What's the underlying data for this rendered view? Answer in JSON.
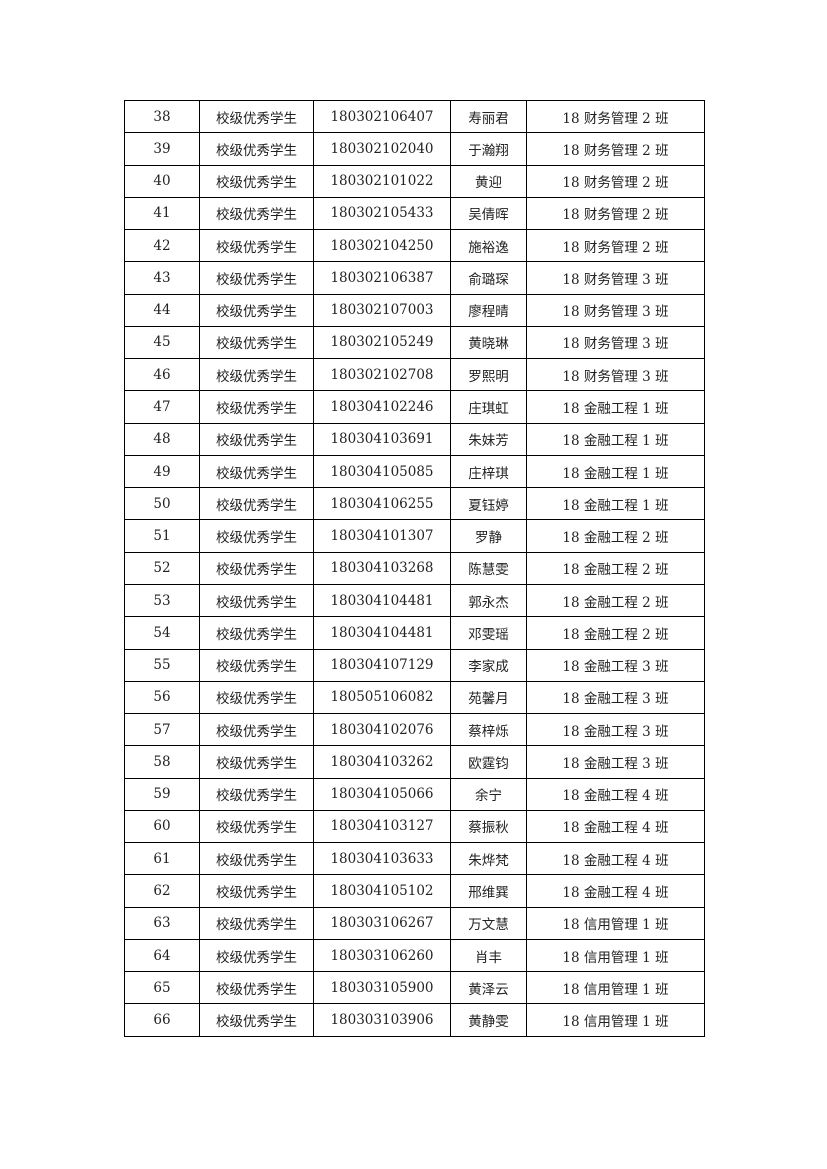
{
  "table": {
    "rows": [
      [
        "38",
        "校级优秀学生",
        "180302106407",
        "寿丽君",
        "18 财务管理 2 班"
      ],
      [
        "39",
        "校级优秀学生",
        "180302102040",
        "于瀚翔",
        "18 财务管理 2 班"
      ],
      [
        "40",
        "校级优秀学生",
        "180302101022",
        "黄迎",
        "18 财务管理 2 班"
      ],
      [
        "41",
        "校级优秀学生",
        "180302105433",
        "吴倩晖",
        "18 财务管理 2 班"
      ],
      [
        "42",
        "校级优秀学生",
        "180302104250",
        "施裕逸",
        "18 财务管理 2 班"
      ],
      [
        "43",
        "校级优秀学生",
        "180302106387",
        "俞璐琛",
        "18 财务管理 3 班"
      ],
      [
        "44",
        "校级优秀学生",
        "180302107003",
        "廖程晴",
        "18 财务管理 3 班"
      ],
      [
        "45",
        "校级优秀学生",
        "180302105249",
        "黄晓琳",
        "18 财务管理 3 班"
      ],
      [
        "46",
        "校级优秀学生",
        "180302102708",
        "罗熙明",
        "18 财务管理 3 班"
      ],
      [
        "47",
        "校级优秀学生",
        "180304102246",
        "庄琪虹",
        "18 金融工程 1 班"
      ],
      [
        "48",
        "校级优秀学生",
        "180304103691",
        "朱妹芳",
        "18 金融工程 1 班"
      ],
      [
        "49",
        "校级优秀学生",
        "180304105085",
        "庄梓琪",
        "18 金融工程 1 班"
      ],
      [
        "50",
        "校级优秀学生",
        "180304106255",
        "夏钰婷",
        "18 金融工程 1 班"
      ],
      [
        "51",
        "校级优秀学生",
        "180304101307",
        "罗静",
        "18 金融工程 2 班"
      ],
      [
        "52",
        "校级优秀学生",
        "180304103268",
        "陈慧雯",
        "18 金融工程 2 班"
      ],
      [
        "53",
        "校级优秀学生",
        "180304104481",
        "郭永杰",
        "18 金融工程 2 班"
      ],
      [
        "54",
        "校级优秀学生",
        "180304104481",
        "邓雯瑶",
        "18 金融工程 2 班"
      ],
      [
        "55",
        "校级优秀学生",
        "180304107129",
        "李家成",
        "18 金融工程 3 班"
      ],
      [
        "56",
        "校级优秀学生",
        "180505106082",
        "苑馨月",
        "18 金融工程 3 班"
      ],
      [
        "57",
        "校级优秀学生",
        "180304102076",
        "蔡梓烁",
        "18 金融工程 3 班"
      ],
      [
        "58",
        "校级优秀学生",
        "180304103262",
        "欧霆钧",
        "18 金融工程 3 班"
      ],
      [
        "59",
        "校级优秀学生",
        "180304105066",
        "余宁",
        "18 金融工程 4 班"
      ],
      [
        "60",
        "校级优秀学生",
        "180304103127",
        "蔡振秋",
        "18 金融工程 4 班"
      ],
      [
        "61",
        "校级优秀学生",
        "180304103633",
        "朱烨梵",
        "18 金融工程 4 班"
      ],
      [
        "62",
        "校级优秀学生",
        "180304105102",
        "邢维巽",
        "18 金融工程 4 班"
      ],
      [
        "63",
        "校级优秀学生",
        "180303106267",
        "万文慧",
        "18 信用管理 1 班"
      ],
      [
        "64",
        "校级优秀学生",
        "180303106260",
        "肖丰",
        "18 信用管理 1 班"
      ],
      [
        "65",
        "校级优秀学生",
        "180303105900",
        "黄泽云",
        "18 信用管理 1 班"
      ],
      [
        "66",
        "校级优秀学生",
        "180303103906",
        "黄静雯",
        "18 信用管理 1 班"
      ]
    ]
  }
}
